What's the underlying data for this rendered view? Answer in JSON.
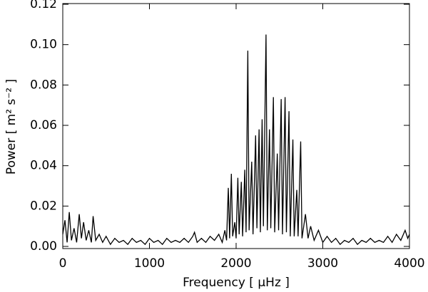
{
  "chart_data": {
    "type": "line",
    "xlabel": "Frequency [ μHz ]",
    "ylabel": "Power [ m² s⁻² ]",
    "x": [
      0,
      25,
      50,
      75,
      100,
      130,
      160,
      190,
      215,
      240,
      270,
      300,
      330,
      350,
      380,
      420,
      460,
      500,
      550,
      600,
      650,
      700,
      750,
      800,
      850,
      900,
      950,
      1000,
      1050,
      1100,
      1150,
      1200,
      1250,
      1300,
      1350,
      1400,
      1450,
      1500,
      1520,
      1550,
      1600,
      1650,
      1700,
      1750,
      1800,
      1840,
      1870,
      1890,
      1910,
      1925,
      1945,
      1960,
      1985,
      2000,
      2020,
      2035,
      2060,
      2075,
      2100,
      2115,
      2135,
      2150,
      2180,
      2195,
      2225,
      2240,
      2265,
      2280,
      2300,
      2315,
      2345,
      2360,
      2385,
      2400,
      2430,
      2445,
      2475,
      2490,
      2520,
      2535,
      2565,
      2580,
      2610,
      2625,
      2655,
      2670,
      2700,
      2715,
      2745,
      2760,
      2800,
      2830,
      2860,
      2900,
      2950,
      3000,
      3050,
      3100,
      3150,
      3200,
      3250,
      3300,
      3350,
      3400,
      3450,
      3500,
      3550,
      3600,
      3650,
      3700,
      3750,
      3800,
      3850,
      3900,
      3950,
      3980,
      4000
    ],
    "values": [
      0.006,
      0.013,
      0.002,
      0.017,
      0.003,
      0.009,
      0.002,
      0.016,
      0.004,
      0.012,
      0.003,
      0.008,
      0.002,
      0.015,
      0.003,
      0.006,
      0.002,
      0.005,
      0.001,
      0.004,
      0.002,
      0.003,
      0.001,
      0.004,
      0.002,
      0.003,
      0.001,
      0.004,
      0.002,
      0.003,
      0.001,
      0.004,
      0.002,
      0.003,
      0.002,
      0.004,
      0.002,
      0.005,
      0.007,
      0.002,
      0.004,
      0.002,
      0.005,
      0.003,
      0.006,
      0.002,
      0.008,
      0.003,
      0.029,
      0.004,
      0.036,
      0.005,
      0.012,
      0.004,
      0.034,
      0.006,
      0.032,
      0.005,
      0.038,
      0.007,
      0.097,
      0.008,
      0.042,
      0.006,
      0.055,
      0.009,
      0.058,
      0.007,
      0.063,
      0.01,
      0.105,
      0.008,
      0.058,
      0.009,
      0.074,
      0.007,
      0.046,
      0.008,
      0.073,
      0.006,
      0.074,
      0.007,
      0.067,
      0.005,
      0.053,
      0.005,
      0.028,
      0.005,
      0.052,
      0.004,
      0.016,
      0.004,
      0.01,
      0.003,
      0.008,
      0.002,
      0.005,
      0.002,
      0.004,
      0.001,
      0.003,
      0.002,
      0.004,
      0.001,
      0.003,
      0.002,
      0.004,
      0.002,
      0.003,
      0.002,
      0.005,
      0.002,
      0.006,
      0.003,
      0.008,
      0.004,
      0.006
    ],
    "color": "#000000",
    "xlim": [
      0,
      4000
    ],
    "xticks": [
      0,
      1000,
      2000,
      3000,
      4000
    ],
    "ylim": [
      0,
      0.12
    ],
    "yticks": [
      {
        "value": 0,
        "label": "0.00"
      },
      {
        "value": 0.02,
        "label": "0.02"
      },
      {
        "value": 0.04,
        "label": "0.04"
      },
      {
        "value": 0.06,
        "label": "0.06"
      },
      {
        "value": 0.08,
        "label": "0.08"
      },
      {
        "value": 0.1,
        "label": "0.10"
      },
      {
        "value": 0.12,
        "label": "0.12"
      }
    ]
  }
}
